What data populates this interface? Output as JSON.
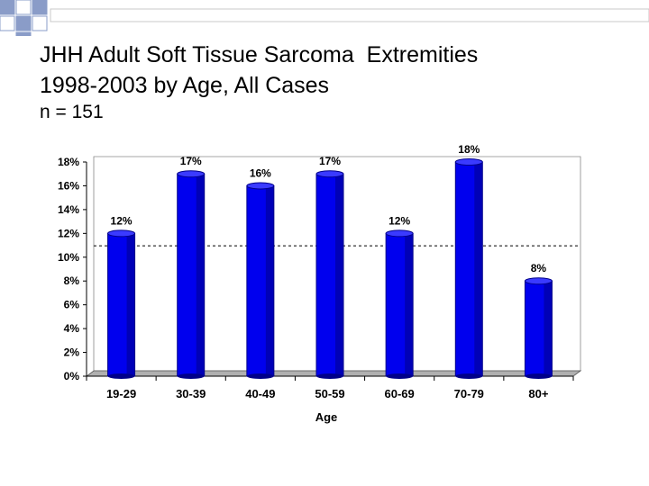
{
  "slide": {
    "title_line1": "JHH Adult Soft Tissue Sarcoma  Extremities",
    "title_line2": "1998-2003 by Age, All Cases",
    "subtitle": "n = 151"
  },
  "colors": {
    "bar": "#0000ee",
    "bar_dark": "#00008a",
    "bar_top": "#3a3aff",
    "floor": "#b0b0b0",
    "wall": "#ffffff",
    "decor_square": "#8a9cc8"
  },
  "chart_data": {
    "type": "bar",
    "categories": [
      "19-29",
      "30-39",
      "40-49",
      "50-59",
      "60-69",
      "70-79",
      "80+"
    ],
    "values": [
      12,
      17,
      16,
      17,
      12,
      18,
      8
    ],
    "data_labels": [
      "12%",
      "17%",
      "16%",
      "17%",
      "12%",
      "18%",
      "8%"
    ],
    "y_ticks": [
      "0%",
      "2%",
      "4%",
      "6%",
      "8%",
      "10%",
      "12%",
      "14%",
      "16%",
      "18%"
    ],
    "ylim": [
      0,
      18
    ],
    "reference_line": 10.5,
    "xlabel": "Age",
    "ylabel": "",
    "grid": false,
    "legend": "none"
  }
}
